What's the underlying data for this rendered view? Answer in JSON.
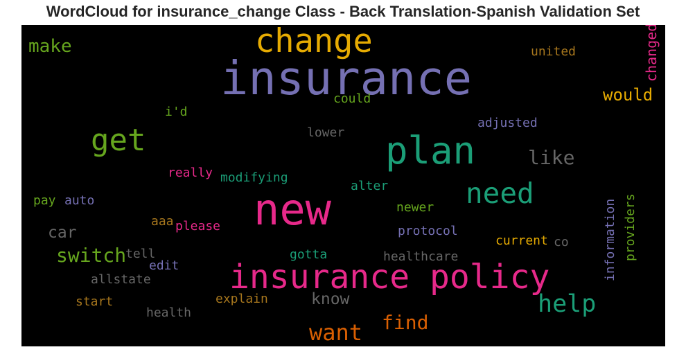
{
  "title": "WordCloud for insurance_change Class - Back Translation-Spanish Validation Set",
  "words": [
    {
      "text": "insurance",
      "color": "#7570b3"
    },
    {
      "text": "new",
      "color": "#e7298a"
    },
    {
      "text": "insurance policy",
      "color": "#e7298a"
    },
    {
      "text": "plan",
      "color": "#1b9e77"
    },
    {
      "text": "change",
      "color": "#e6ab02"
    },
    {
      "text": "get",
      "color": "#66a61e"
    },
    {
      "text": "need",
      "color": "#1b9e77"
    },
    {
      "text": "help",
      "color": "#1b9e77"
    },
    {
      "text": "want",
      "color": "#d95f02"
    },
    {
      "text": "find",
      "color": "#d95f02"
    },
    {
      "text": "switch",
      "color": "#66a61e"
    },
    {
      "text": "make",
      "color": "#66a61e"
    },
    {
      "text": "like",
      "color": "#666666"
    },
    {
      "text": "would",
      "color": "#e6ab02"
    },
    {
      "text": "know",
      "color": "#666666"
    },
    {
      "text": "car",
      "color": "#666666"
    },
    {
      "text": "united",
      "color": "#a6761d"
    },
    {
      "text": "changed",
      "color": "#e7298a"
    },
    {
      "text": "could",
      "color": "#66a61e"
    },
    {
      "text": "i'd",
      "color": "#66a61e"
    },
    {
      "text": "lower",
      "color": "#666666"
    },
    {
      "text": "adjusted",
      "color": "#7570b3"
    },
    {
      "text": "really",
      "color": "#e7298a"
    },
    {
      "text": "modifying",
      "color": "#1b9e77"
    },
    {
      "text": "alter",
      "color": "#1b9e77"
    },
    {
      "text": "pay",
      "color": "#66a61e"
    },
    {
      "text": "auto",
      "color": "#7570b3"
    },
    {
      "text": "newer",
      "color": "#66a61e"
    },
    {
      "text": "aaa",
      "color": "#a6761d"
    },
    {
      "text": "please",
      "color": "#e7298a"
    },
    {
      "text": "protocol",
      "color": "#7570b3"
    },
    {
      "text": "information",
      "color": "#7570b3"
    },
    {
      "text": "providers",
      "color": "#66a61e"
    },
    {
      "text": "current",
      "color": "#e6ab02"
    },
    {
      "text": "co",
      "color": "#666666"
    },
    {
      "text": "tell",
      "color": "#666666"
    },
    {
      "text": "edit",
      "color": "#7570b3"
    },
    {
      "text": "gotta",
      "color": "#1b9e77"
    },
    {
      "text": "healthcare",
      "color": "#666666"
    },
    {
      "text": "allstate",
      "color": "#666666"
    },
    {
      "text": "explain",
      "color": "#a6761d"
    },
    {
      "text": "start",
      "color": "#a6761d"
    },
    {
      "text": "health",
      "color": "#666666"
    }
  ]
}
